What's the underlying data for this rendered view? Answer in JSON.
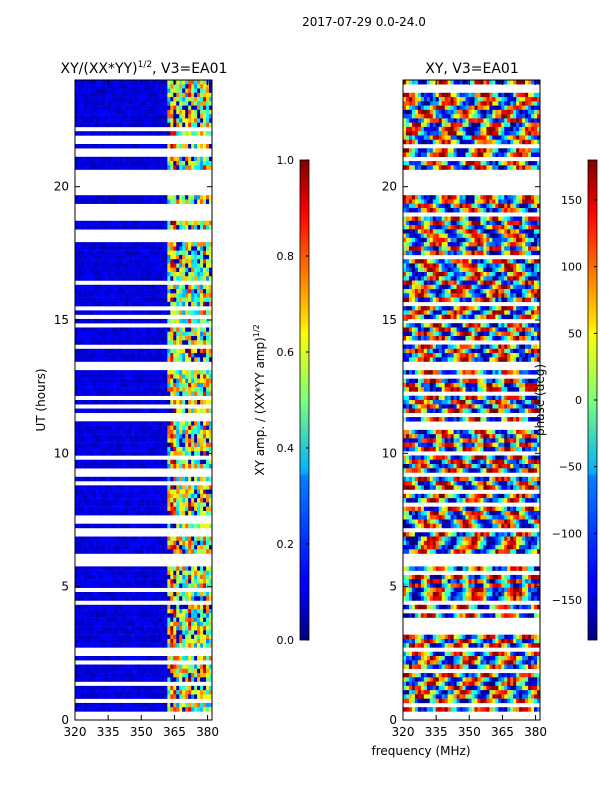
{
  "figure": {
    "suptitle": "2017-07-29 0.0-24.0",
    "xlabel_shared": "frequency (MHz)"
  },
  "chart_data": [
    {
      "type": "heatmap",
      "id": "amp",
      "title": "XY/(XX*YY)",
      "title_exponent": "1/2",
      "title_suffix": ", V3=EA01",
      "xlabel": "",
      "ylabel": "UT (hours)",
      "xlim": [
        320,
        382
      ],
      "ylim": [
        0,
        24
      ],
      "xticks": [
        320,
        335,
        350,
        365,
        380
      ],
      "yticks": [
        0,
        5,
        10,
        15,
        20
      ],
      "colorbar": {
        "label": "XY amp. / (XX*YY amp)",
        "label_exponent": "1/2",
        "range": [
          0.0,
          1.0
        ],
        "ticks": [
          "0.0",
          "0.2",
          "0.4",
          "0.6",
          "0.8",
          "1.0"
        ],
        "colormap": "jet"
      },
      "gaps_hours": [
        [
          0.05,
          0.25
        ],
        [
          6.3,
          5.8
        ],
        [
          20.6,
          19.8
        ]
      ],
      "seed": 7
    },
    {
      "type": "heatmap",
      "id": "phase",
      "title": "XY",
      "title_suffix": ", V3=EA01",
      "xlabel": "frequency (MHz)",
      "ylabel": "",
      "xlim": [
        320,
        382
      ],
      "ylim": [
        0,
        24
      ],
      "xticks": [
        320,
        335,
        350,
        365,
        380
      ],
      "yticks": [
        0,
        5,
        10,
        15,
        20
      ],
      "colorbar": {
        "label": "phase (deg)",
        "range": [
          -180,
          180
        ],
        "ticks": [
          "150",
          "100",
          "50",
          "0",
          "−50",
          "−100",
          "−150"
        ],
        "tick_values": [
          150,
          100,
          50,
          0,
          -50,
          -100,
          -150
        ],
        "colormap": "jet"
      },
      "seed": 13
    }
  ]
}
